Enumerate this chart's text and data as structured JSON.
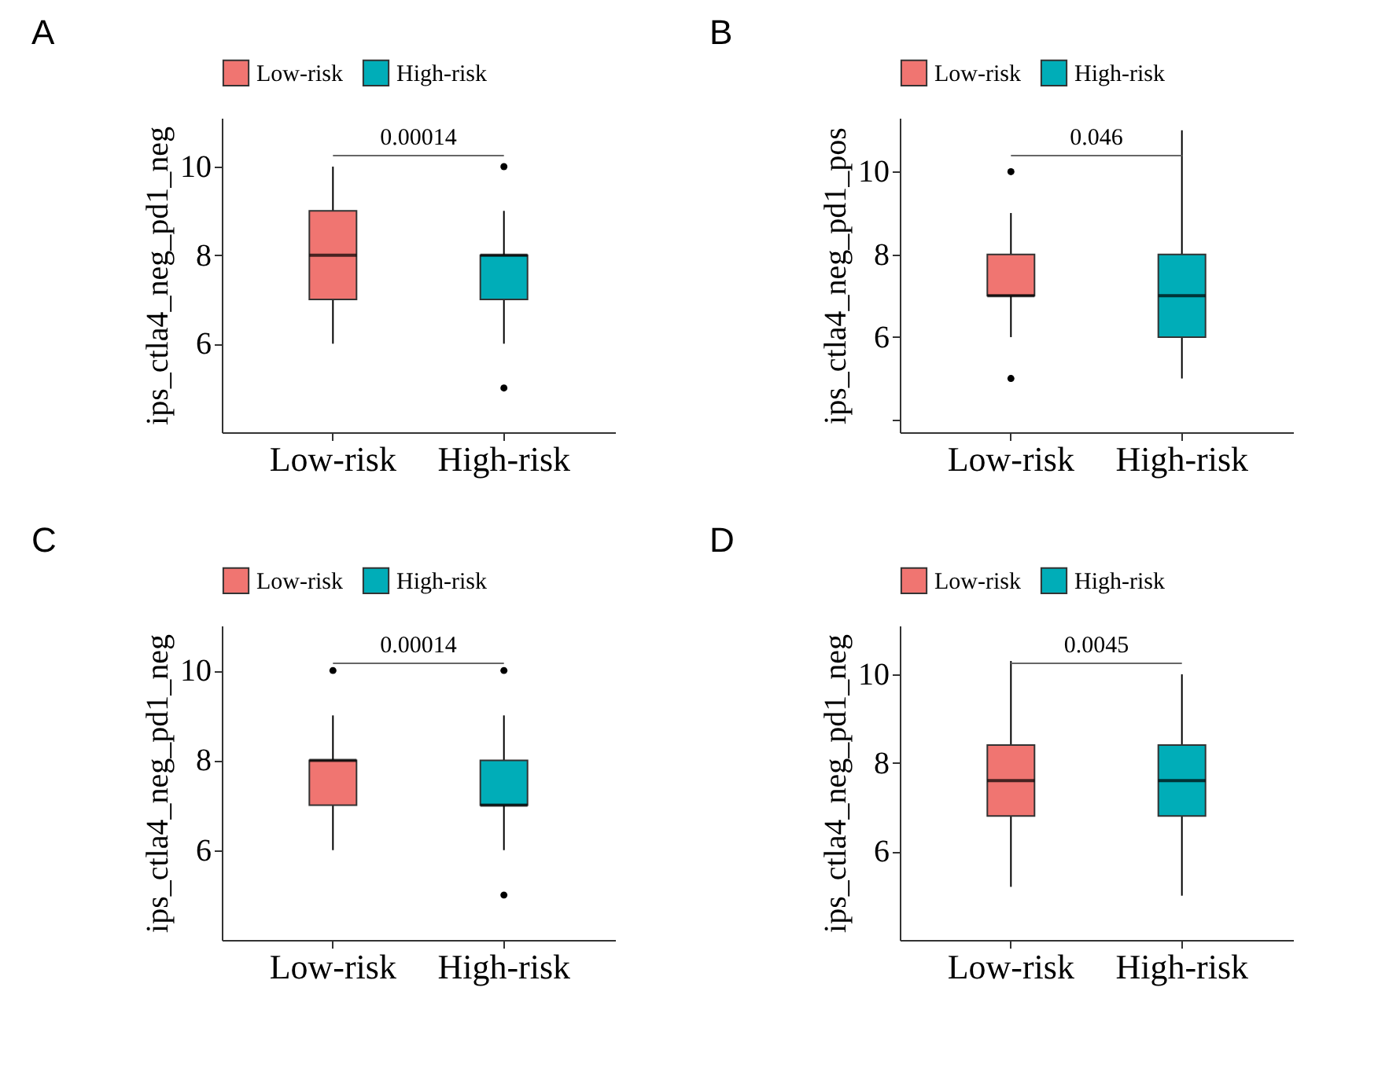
{
  "chart_data": [
    {
      "type": "box",
      "title": "A",
      "ylabel": "ips_ctla4_neg_pd1_neg",
      "categories": [
        "Low-risk",
        "High-risk"
      ],
      "legend": "top",
      "ylim": [
        4.0,
        11.1
      ],
      "yticks": [
        6,
        8,
        10
      ],
      "annotations": [
        "0.00014"
      ],
      "series": [
        {
          "name": "Low-risk",
          "color": "#f07571",
          "boxes": [
            {
              "low": 6,
              "q1": 7,
              "median": 8,
              "q3": 9,
              "high": 10
            },
            null
          ]
        },
        {
          "name": "High-risk",
          "color": "#00adb8",
          "boxes": [
            null,
            {
              "low": 6,
              "q1": 7,
              "median": 8,
              "q3": 8,
              "high": 9,
              "outliers": [
                10,
                5
              ]
            }
          ]
        }
      ]
    },
    {
      "type": "box",
      "title": "B",
      "ylabel": "ips_ctla4_neg_pd1_pos",
      "categories": [
        "Low-risk",
        "High-risk"
      ],
      "legend": "top",
      "ylim": [
        3.7,
        11.3
      ],
      "yticks": [
        {
          "value": 4,
          "label": null
        },
        6,
        8,
        10
      ],
      "annotations": [
        "0.046"
      ],
      "series": [
        {
          "name": "Low-risk",
          "color": "#f07571",
          "boxes": [
            {
              "low": 6,
              "q1": 7,
              "median": 7,
              "q3": 8,
              "high": 9,
              "outliers": [
                10,
                5
              ]
            },
            null
          ]
        },
        {
          "name": "High-risk",
          "color": "#00adb8",
          "boxes": [
            null,
            {
              "low": 5,
              "q1": 6,
              "median": 7,
              "q3": 8,
              "high": 11
            }
          ]
        }
      ]
    },
    {
      "type": "box",
      "title": "C",
      "ylabel": "ips_ctla4_neg_pd1_neg",
      "categories": [
        "Low-risk",
        "High-risk"
      ],
      "legend": "top",
      "ylim": [
        4.0,
        11.0
      ],
      "yticks": [
        6,
        8,
        10
      ],
      "annotations": [
        "0.00014"
      ],
      "series": [
        {
          "name": "Low-risk",
          "color": "#f07571",
          "boxes": [
            {
              "low": 6,
              "q1": 7,
              "median": 8,
              "q3": 8,
              "high": 9,
              "outliers": [
                10
              ]
            },
            null
          ]
        },
        {
          "name": "High-risk",
          "color": "#00adb8",
          "boxes": [
            null,
            {
              "low": 6,
              "q1": 7,
              "median": 7,
              "q3": 8,
              "high": 9,
              "outliers": [
                10,
                5
              ]
            }
          ]
        }
      ]
    },
    {
      "type": "box",
      "title": "D",
      "ylabel": "ips_ctla4_neg_pd1_neg",
      "categories": [
        "Low-risk",
        "High-risk"
      ],
      "legend": "top",
      "ylim": [
        4.0,
        11.1
      ],
      "yticks": [
        6,
        8,
        10
      ],
      "annotations": [
        "0.0045"
      ],
      "series": [
        {
          "name": "Low-risk",
          "color": "#f07571",
          "boxes": [
            {
              "low": 5.2,
              "q1": 6.8,
              "median": 7.6,
              "q3": 8.4,
              "high": 10.3
            },
            null
          ]
        },
        {
          "name": "High-risk",
          "color": "#00adb8",
          "boxes": [
            null,
            {
              "low": 5.0,
              "q1": 6.8,
              "median": 7.6,
              "q3": 8.4,
              "high": 10.0
            }
          ]
        }
      ]
    }
  ]
}
